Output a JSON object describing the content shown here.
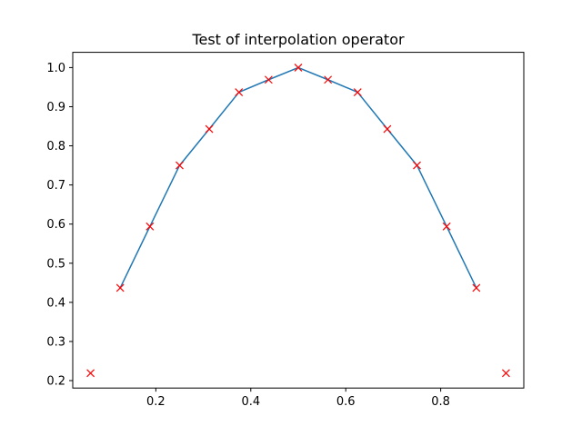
{
  "chart_data": {
    "type": "line",
    "title": "Test of interpolation operator",
    "xlabel": "",
    "ylabel": "",
    "xlim": [
      0.025,
      0.975
    ],
    "ylim": [
      0.181,
      1.039
    ],
    "xticks": [
      0.2,
      0.4,
      0.6,
      0.8
    ],
    "xtick_labels": [
      "0.2",
      "0.4",
      "0.6",
      "0.8"
    ],
    "yticks": [
      0.2,
      0.3,
      0.4,
      0.5,
      0.6,
      0.7,
      0.8,
      0.9,
      1.0
    ],
    "ytick_labels": [
      "0.2",
      "0.3",
      "0.4",
      "0.5",
      "0.6",
      "0.7",
      "0.8",
      "0.9",
      "1.0"
    ],
    "grid": false,
    "series": [
      {
        "style": "line",
        "color": "#1f77b4",
        "x": [
          0.125,
          0.1875,
          0.25,
          0.3125,
          0.375,
          0.4375,
          0.5,
          0.5625,
          0.625,
          0.6875,
          0.75,
          0.8125,
          0.875
        ],
        "y": [
          0.437,
          0.594,
          0.75,
          0.843,
          0.937,
          0.969,
          1.0,
          0.969,
          0.937,
          0.843,
          0.75,
          0.594,
          0.437
        ]
      },
      {
        "style": "markers",
        "marker": "x",
        "color": "#ff0000",
        "x": [
          0.0625,
          0.125,
          0.1875,
          0.25,
          0.3125,
          0.375,
          0.4375,
          0.5,
          0.5625,
          0.625,
          0.6875,
          0.75,
          0.8125,
          0.875,
          0.9375
        ],
        "y": [
          0.219,
          0.437,
          0.594,
          0.75,
          0.843,
          0.937,
          0.969,
          1.0,
          0.969,
          0.937,
          0.843,
          0.75,
          0.594,
          0.437,
          0.219
        ]
      }
    ]
  }
}
